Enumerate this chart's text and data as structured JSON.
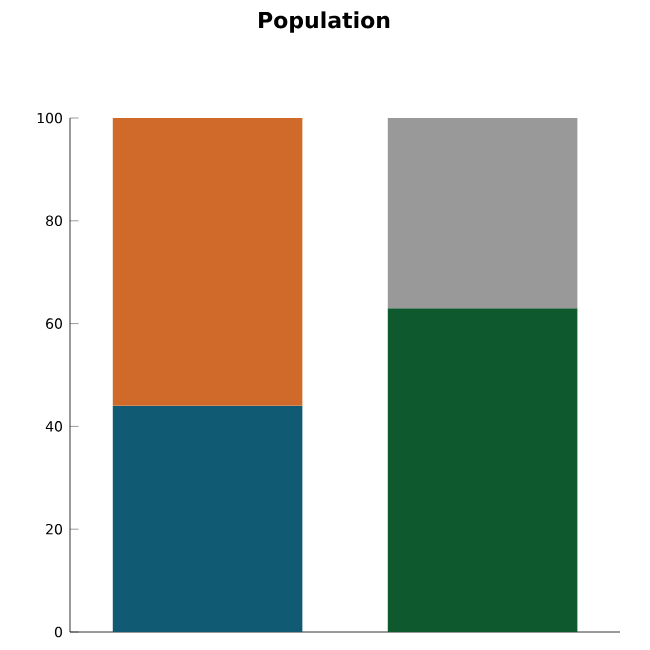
{
  "chart_data": {
    "type": "bar",
    "title": "Population",
    "stacked": true,
    "categories": [
      null,
      null
    ],
    "series": [
      {
        "values": [
          44,
          63
        ],
        "colors": [
          "#115a73",
          "#0e5a2e"
        ]
      },
      {
        "values": [
          56,
          37
        ],
        "colors": [
          "#d06a2a",
          "#999999"
        ]
      }
    ],
    "ylim": [
      0,
      100
    ],
    "yticks": [
      0,
      20,
      40,
      60,
      80,
      100
    ],
    "grid": false
  }
}
